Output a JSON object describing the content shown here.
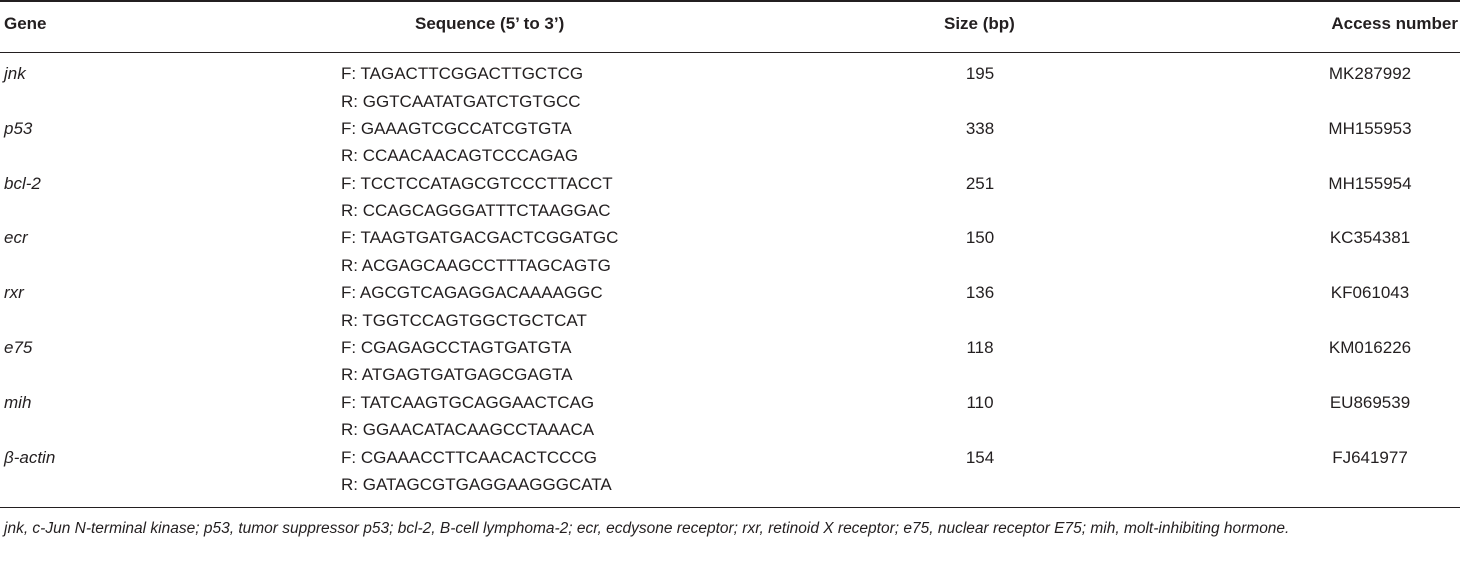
{
  "table": {
    "headers": {
      "gene": "Gene",
      "sequence": "Sequence (5’ to 3’)",
      "size": "Size (bp)",
      "access": "Access number"
    },
    "rows": [
      {
        "gene": "jnk",
        "forward": "F: TAGACTTCGGACTTGCTCG",
        "reverse": "R: GGTCAATATGATCTGTGCC",
        "size": "195",
        "access": "MK287992"
      },
      {
        "gene": "p53",
        "forward": "F: GAAAGTCGCCATCGTGTA",
        "reverse": "R: CCAACAACAGTCCCAGAG",
        "size": "338",
        "access": "MH155953"
      },
      {
        "gene": "bcl-2",
        "forward": "F: TCCTCCATAGCGTCCCTTACCT",
        "reverse": "R: CCAGCAGGGATTTCTAAGGAC",
        "size": "251",
        "access": "MH155954"
      },
      {
        "gene": "ecr",
        "forward": "F: TAAGTGATGACGACTCGGATGC",
        "reverse": "R: ACGAGCAAGCCTTTAGCAGTG",
        "size": "150",
        "access": "KC354381"
      },
      {
        "gene": "rxr",
        "forward": "F: AGCGTCAGAGGACAAAAGGC",
        "reverse": "R: TGGTCCAGTGGCTGCTCAT",
        "size": "136",
        "access": "KF061043"
      },
      {
        "gene": "e75",
        "forward": "F: CGAGAGCCTAGTGATGTA",
        "reverse": "R: ATGAGTGATGAGCGAGTA",
        "size": "118",
        "access": "KM016226"
      },
      {
        "gene": "mih",
        "forward": "F: TATCAAGTGCAGGAACTCAG",
        "reverse": "R: GGAACATACAAGCCTAAACA",
        "size": "110",
        "access": "EU869539"
      },
      {
        "gene": "β-actin",
        "forward": "F: CGAAACCTTCAACACTCCCG",
        "reverse": "R: GATAGCGTGAGGAAGGGCATA",
        "size": "154",
        "access": "FJ641977"
      }
    ],
    "footnote": "jnk, c-Jun N-terminal kinase; p53, tumor suppressor p53; bcl-2, B-cell lymphoma-2; ecr, ecdysone receptor; rxr, retinoid X receptor; e75, nuclear receptor E75; mih, molt-inhibiting hormone."
  }
}
